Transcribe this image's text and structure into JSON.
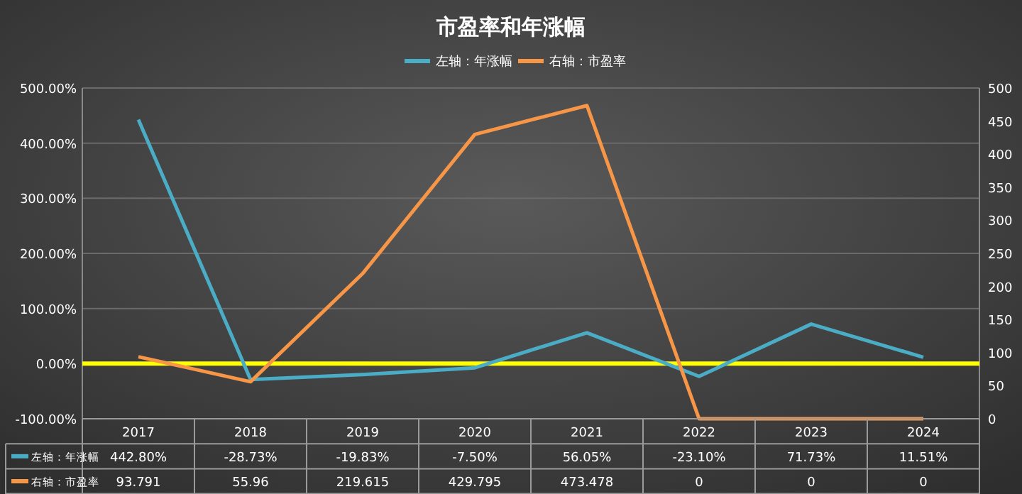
{
  "chart_data": {
    "type": "line",
    "title": "市盈率和年涨幅",
    "categories": [
      "2017",
      "2018",
      "2019",
      "2020",
      "2021",
      "2022",
      "2023",
      "2024"
    ],
    "series": [
      {
        "name": "左轴：年涨幅",
        "color": "#4bacc6",
        "values": [
          442.8,
          -28.73,
          -19.83,
          -7.5,
          56.05,
          -23.1,
          71.73,
          11.51
        ],
        "value_labels": [
          "442.80%",
          "-28.73%",
          "-19.83%",
          "-7.50%",
          "56.05%",
          "-23.10%",
          "71.73%",
          "11.51%"
        ]
      },
      {
        "name": "右轴：市盈率",
        "color": "#f79646",
        "axis": "y2",
        "values": [
          93.791,
          55.96,
          219.615,
          429.795,
          473.478,
          0,
          0,
          0
        ],
        "value_labels": [
          "93.791",
          "55.96",
          "219.615",
          "429.795",
          "473.478",
          "0",
          "0",
          "0"
        ]
      }
    ],
    "ylim": [
      -100,
      500
    ],
    "yticks": [
      {
        "value": -100,
        "label": "-100.00%"
      },
      {
        "value": 0,
        "label": "0.00%"
      },
      {
        "value": 100,
        "label": "100.00%"
      },
      {
        "value": 200,
        "label": "200.00%"
      },
      {
        "value": 300,
        "label": "300.00%"
      },
      {
        "value": 400,
        "label": "400.00%"
      },
      {
        "value": 500,
        "label": "500.00%"
      }
    ],
    "y2lim": [
      0,
      500
    ],
    "y2ticks": [
      0,
      50,
      100,
      150,
      200,
      250,
      300,
      350,
      400,
      450,
      500
    ],
    "ref_lines": [
      {
        "axis": "y",
        "value": 0,
        "color": "#ffff00"
      }
    ],
    "grid": "y",
    "legend": "top",
    "marker": "none",
    "line_style": "solid"
  }
}
